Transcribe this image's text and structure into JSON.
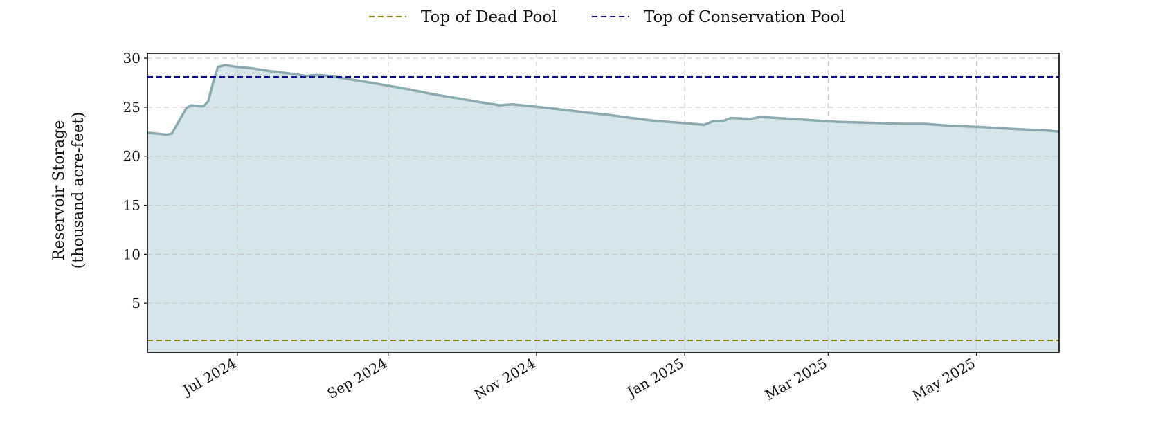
{
  "chart_data": {
    "type": "area",
    "title": "",
    "xlabel": "",
    "ylabel_lines": [
      "Reservoir Storage",
      "(thousand acre-feet)"
    ],
    "x_range": [
      "2024-05-25",
      "2025-06-04"
    ],
    "ylim": [
      0,
      30.5
    ],
    "y_ticks": [
      5,
      10,
      15,
      20,
      25,
      30
    ],
    "y_tick_labels": [
      "5",
      "10",
      "15",
      "20",
      "25",
      "30"
    ],
    "x_ticks": [
      {
        "date": "2024-07-01",
        "label": "Jul 2024"
      },
      {
        "date": "2024-09-01",
        "label": "Sep 2024"
      },
      {
        "date": "2024-11-01",
        "label": "Nov 2024"
      },
      {
        "date": "2025-01-01",
        "label": "Jan 2025"
      },
      {
        "date": "2025-03-01",
        "label": "Mar 2025"
      },
      {
        "date": "2025-05-01",
        "label": "May 2025"
      }
    ],
    "grid": true,
    "legend_position": "top-center",
    "reference_lines": [
      {
        "name": "Top of Dead Pool",
        "value": 1.2,
        "color": "#8b8000",
        "dash": "dashed"
      },
      {
        "name": "Top of Conservation Pool",
        "value": 28.1,
        "color": "#0a0a8a",
        "dash": "dashed"
      }
    ],
    "series": [
      {
        "line_color": "#8aaab0",
        "fill_color": "#d6e6e8",
        "points": [
          [
            "2024-05-25",
            22.4
          ],
          [
            "2024-05-29",
            22.3
          ],
          [
            "2024-06-02",
            22.2
          ],
          [
            "2024-06-04",
            22.3
          ],
          [
            "2024-06-07",
            23.6
          ],
          [
            "2024-06-10",
            24.9
          ],
          [
            "2024-06-12",
            25.2
          ],
          [
            "2024-06-17",
            25.1
          ],
          [
            "2024-06-19",
            25.6
          ],
          [
            "2024-06-21",
            27.5
          ],
          [
            "2024-06-23",
            29.1
          ],
          [
            "2024-06-26",
            29.3
          ],
          [
            "2024-07-01",
            29.1
          ],
          [
            "2024-07-06",
            29.0
          ],
          [
            "2024-07-14",
            28.7
          ],
          [
            "2024-07-24",
            28.4
          ],
          [
            "2024-07-29",
            28.2
          ],
          [
            "2024-08-03",
            28.3
          ],
          [
            "2024-08-08",
            28.2
          ],
          [
            "2024-08-15",
            27.9
          ],
          [
            "2024-08-25",
            27.5
          ],
          [
            "2024-09-01",
            27.2
          ],
          [
            "2024-09-10",
            26.8
          ],
          [
            "2024-09-20",
            26.3
          ],
          [
            "2024-09-30",
            25.9
          ],
          [
            "2024-10-09",
            25.5
          ],
          [
            "2024-10-17",
            25.2
          ],
          [
            "2024-10-22",
            25.3
          ],
          [
            "2024-10-30",
            25.1
          ],
          [
            "2024-11-10",
            24.8
          ],
          [
            "2024-11-20",
            24.5
          ],
          [
            "2024-12-01",
            24.2
          ],
          [
            "2024-12-10",
            23.9
          ],
          [
            "2024-12-20",
            23.6
          ],
          [
            "2024-12-31",
            23.4
          ],
          [
            "2025-01-09",
            23.2
          ],
          [
            "2025-01-13",
            23.6
          ],
          [
            "2025-01-17",
            23.6
          ],
          [
            "2025-01-20",
            23.9
          ],
          [
            "2025-01-28",
            23.8
          ],
          [
            "2025-02-01",
            24.0
          ],
          [
            "2025-02-08",
            23.9
          ],
          [
            "2025-02-20",
            23.7
          ],
          [
            "2025-03-05",
            23.5
          ],
          [
            "2025-03-20",
            23.4
          ],
          [
            "2025-04-01",
            23.3
          ],
          [
            "2025-04-10",
            23.3
          ],
          [
            "2025-04-20",
            23.1
          ],
          [
            "2025-05-01",
            23.0
          ],
          [
            "2025-05-15",
            22.8
          ],
          [
            "2025-05-31",
            22.6
          ],
          [
            "2025-06-04",
            22.5
          ]
        ]
      }
    ]
  }
}
